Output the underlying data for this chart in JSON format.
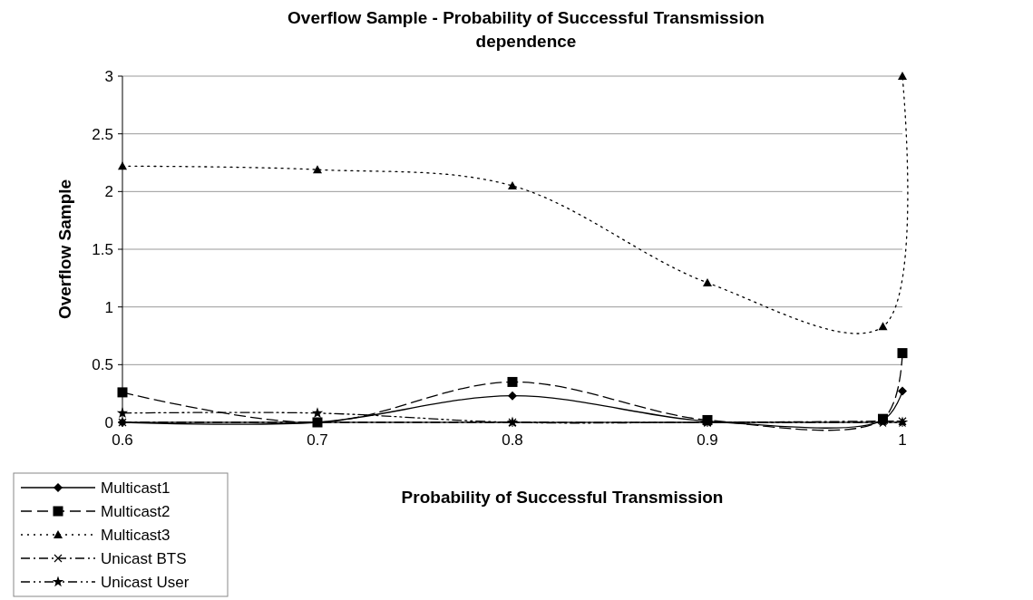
{
  "chart_data": {
    "type": "line",
    "title": "Overflow Sample - Probability of Successful Transmission dependence",
    "xlabel": "Probability of Successful Transmission",
    "ylabel": "Overflow Sample",
    "x": [
      0.6,
      0.7,
      0.8,
      0.9,
      0.99,
      1
    ],
    "xlim": [
      0.6,
      1
    ],
    "xticks": [
      0.6,
      0.7,
      0.8,
      0.9,
      1
    ],
    "ylim": [
      0,
      3
    ],
    "yticks": [
      0,
      0.5,
      1,
      1.5,
      2,
      2.5,
      3
    ],
    "grid": "y",
    "legend": "bottom left",
    "series": [
      {
        "name": "Multicast1",
        "color": "#000000",
        "marker": "diamond",
        "line_style": "solid",
        "values": [
          0,
          0,
          0.23,
          0.01,
          0.02,
          0.27
        ]
      },
      {
        "name": "Multicast2",
        "color": "#000000",
        "marker": "square",
        "line_style": "dashed",
        "values": [
          0.26,
          0,
          0.35,
          0.02,
          0.03,
          0.6
        ]
      },
      {
        "name": "Multicast3",
        "color": "#000000",
        "marker": "triangle",
        "line_style": "dotted",
        "values": [
          2.22,
          2.19,
          2.05,
          1.21,
          0.83,
          3
        ]
      },
      {
        "name": "Unicast BTS",
        "color": "#000000",
        "marker": "cross",
        "line_style": "dashdot",
        "values": [
          0,
          0,
          0,
          0,
          0.01,
          0.01
        ]
      },
      {
        "name": "Unicast User",
        "color": "#000000",
        "marker": "star",
        "line_style": "dashdotdot",
        "values": [
          0.08,
          0.08,
          0,
          0,
          0,
          0
        ]
      }
    ]
  }
}
